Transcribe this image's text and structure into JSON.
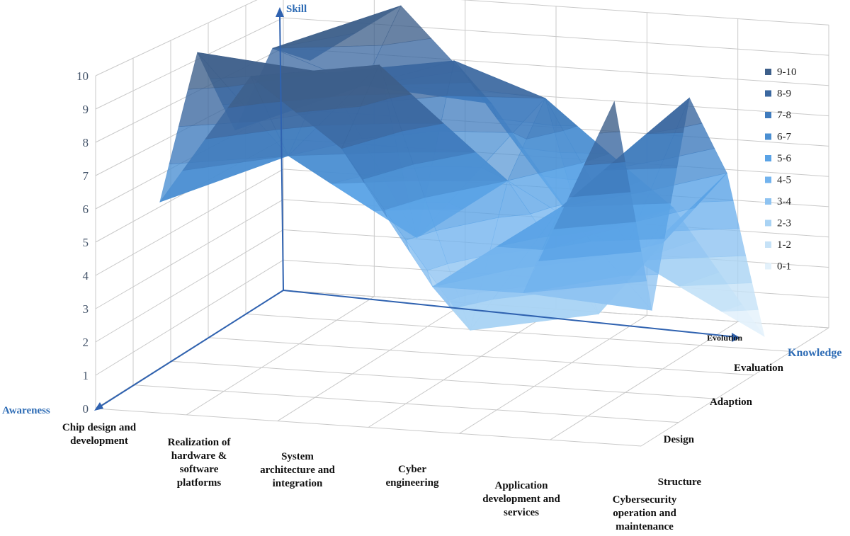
{
  "chart_data": {
    "type": "surface",
    "categories": [
      "Chip design and development",
      "Realization of hardware & software platforms",
      "System architecture and integration",
      "Cyber engineering",
      "Application development and services",
      "Cybersecurity operation and maintenance"
    ],
    "series": [
      {
        "name": "Structure",
        "values": [
          6,
          10,
          8,
          4,
          4,
          10
        ]
      },
      {
        "name": "Design",
        "values": [
          10,
          7,
          10,
          2,
          6,
          3
        ]
      },
      {
        "name": "Adaption",
        "values": [
          7,
          9,
          4,
          6,
          2,
          9
        ]
      },
      {
        "name": "Evaluation",
        "values": [
          9,
          8,
          9,
          8,
          3,
          6
        ]
      },
      {
        "name": "Evolution",
        "values": [
          8,
          10,
          7,
          3,
          4,
          0
        ]
      }
    ],
    "zlim": [
      0,
      10
    ],
    "ztick_labels": [
      "0",
      "1",
      "2",
      "3",
      "4",
      "5",
      "6",
      "7",
      "8",
      "9",
      "10"
    ],
    "axis_titles": {
      "vertical": "Skill",
      "series_axis": "Knowledge",
      "category_axis": "Awareness"
    },
    "legend": {
      "position": "right",
      "entries": [
        "9-10",
        "8-9",
        "7-8",
        "6-7",
        "5-6",
        "4-5",
        "3-4",
        "2-3",
        "1-2",
        "0-1"
      ],
      "colors": [
        "#3d5f8a",
        "#3b68a0",
        "#3f7bbd",
        "#4b8fd2",
        "#5aa3e6",
        "#72b3ee",
        "#8ec3f1",
        "#a9d3f4",
        "#c6e2f7",
        "#e3f1fb"
      ]
    },
    "grid": true
  }
}
